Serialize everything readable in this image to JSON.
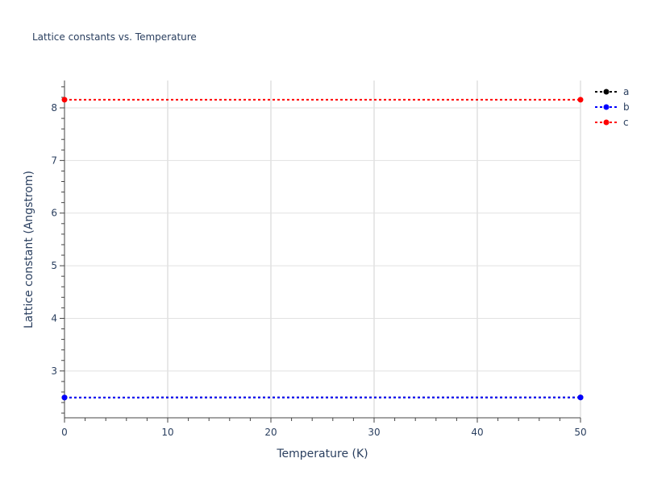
{
  "chart_data": {
    "type": "line",
    "title": "Lattice constants vs. Temperature",
    "xlabel": "Temperature (K)",
    "ylabel": "Lattice constant (Angstrom)",
    "xlim": [
      0,
      50
    ],
    "ylim": [
      2.11,
      8.52
    ],
    "x_ticks": [
      "0",
      "10",
      "20",
      "30",
      "40",
      "50"
    ],
    "y_ticks": [
      "3",
      "4",
      "5",
      "6",
      "7",
      "8"
    ],
    "grid": true,
    "legend_position": "top-right",
    "line_style": "dotted with markers",
    "series": [
      {
        "name": "a",
        "color": "#000000",
        "x": [
          0,
          50
        ],
        "y": [
          2.495,
          2.497
        ]
      },
      {
        "name": "b",
        "color": "#0000ff",
        "x": [
          0,
          50
        ],
        "y": [
          2.495,
          2.497
        ]
      },
      {
        "name": "c",
        "color": "#ff0000",
        "x": [
          0,
          50
        ],
        "y": [
          8.155,
          8.155
        ]
      }
    ]
  }
}
